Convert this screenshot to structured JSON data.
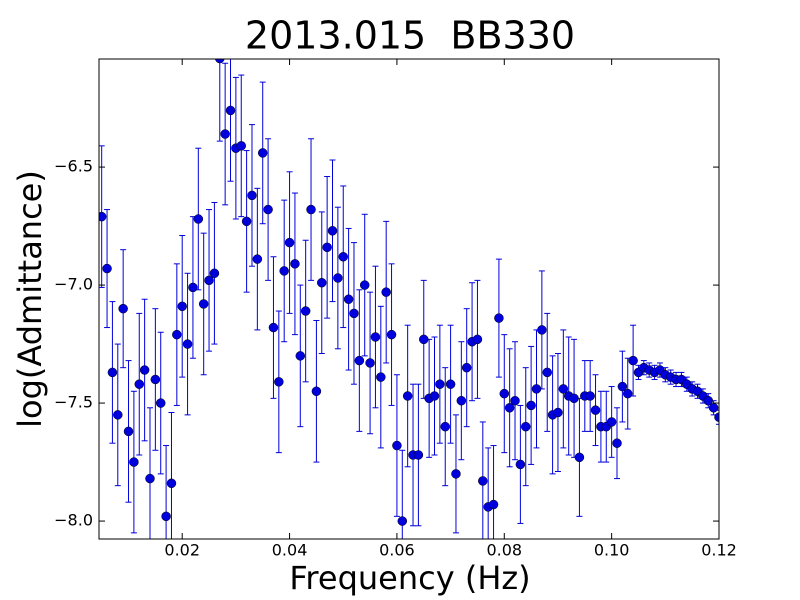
{
  "chart_data": {
    "type": "errorbar",
    "title": "2013.015  BB330",
    "x_label": "Frequency (Hz)",
    "y_label": "log(Admittance)",
    "xlim": [
      0.0045,
      0.12
    ],
    "ylim": [
      -8.076,
      -6.042
    ],
    "xticks": [
      0.02,
      0.04,
      0.06,
      0.08,
      {
        "value": 0.1,
        "label": "0.10"
      },
      0.12
    ],
    "yticks": [
      {
        "value": -8.0,
        "label": "−8.0"
      },
      {
        "value": -7.5,
        "label": "−7.5"
      },
      {
        "value": -7.0,
        "label": "−7.0"
      },
      {
        "value": -6.5,
        "label": "−6.5"
      }
    ],
    "x": [
      0.005,
      0.006,
      0.007,
      0.008,
      0.009,
      0.01,
      0.011,
      0.012,
      0.013,
      0.014,
      0.015,
      0.016,
      0.017,
      0.018,
      0.019,
      0.02,
      0.021,
      0.022,
      0.023,
      0.024,
      0.025,
      0.026,
      0.027,
      0.028,
      0.029,
      0.03,
      0.031,
      0.032,
      0.033,
      0.034,
      0.035,
      0.036,
      0.037,
      0.038,
      0.039,
      0.04,
      0.041,
      0.042,
      0.043,
      0.044,
      0.045,
      0.046,
      0.047,
      0.048,
      0.049,
      0.05,
      0.051,
      0.052,
      0.053,
      0.054,
      0.055,
      0.056,
      0.057,
      0.058,
      0.059,
      0.06,
      0.061,
      0.062,
      0.063,
      0.064,
      0.065,
      0.066,
      0.067,
      0.068,
      0.069,
      0.07,
      0.071,
      0.072,
      0.073,
      0.074,
      0.075,
      0.076,
      0.077,
      0.078,
      0.079,
      0.08,
      0.081,
      0.082,
      0.083,
      0.084,
      0.085,
      0.086,
      0.087,
      0.088,
      0.089,
      0.09,
      0.091,
      0.092,
      0.093,
      0.094,
      0.095,
      0.096,
      0.097,
      0.098,
      0.099,
      0.1,
      0.101,
      0.102,
      0.103,
      0.104,
      0.105,
      0.106,
      0.107,
      0.108,
      0.109,
      0.11,
      0.111,
      0.112,
      0.113,
      0.114,
      0.115,
      0.116,
      0.117,
      0.118,
      0.119,
      0.12
    ],
    "series": [
      {
        "color": "#0000dd",
        "values": [
          -6.71,
          -6.93,
          -7.37,
          -7.55,
          -7.1,
          -7.62,
          -7.75,
          -7.42,
          -7.36,
          -7.82,
          -7.4,
          -7.5,
          -7.98,
          -7.84,
          -7.21,
          -7.09,
          -7.25,
          -7.01,
          -6.72,
          -7.08,
          -6.98,
          -6.95,
          -6.04,
          -6.36,
          -6.26,
          -6.42,
          -6.41,
          -6.73,
          -6.62,
          -6.89,
          -6.44,
          -6.68,
          -7.18,
          -7.41,
          -6.94,
          -6.82,
          -6.91,
          -7.3,
          -7.11,
          -6.68,
          -7.45,
          -6.99,
          -6.84,
          -6.77,
          -6.97,
          -6.88,
          -7.06,
          -7.12,
          -7.32,
          -7.0,
          -7.33,
          -7.22,
          -7.39,
          -7.03,
          -7.21,
          -7.68,
          -8.0,
          -7.47,
          -7.72,
          -7.72,
          -7.23,
          -7.48,
          -7.47,
          -7.42,
          -7.6,
          -7.42,
          -7.8,
          -7.49,
          -7.35,
          -7.24,
          -7.23,
          -7.83,
          -7.94,
          -7.93,
          -7.14,
          -7.46,
          -7.52,
          -7.49,
          -7.76,
          -7.6,
          -7.51,
          -7.44,
          -7.19,
          -7.37,
          -7.55,
          -7.54,
          -7.44,
          -7.47,
          -7.48,
          -7.73,
          -7.47,
          -7.47,
          -7.53,
          -7.6,
          -7.6,
          -7.58,
          -7.67,
          -7.43,
          -7.46,
          -7.32,
          -7.37,
          -7.35,
          -7.36,
          -7.37,
          -7.36,
          -7.38,
          -7.39,
          -7.4,
          -7.4,
          -7.42,
          -7.44,
          -7.45,
          -7.47,
          -7.49,
          -7.52,
          -7.56
        ],
        "errors": [
          0.3,
          0.25,
          0.3,
          0.3,
          0.25,
          0.3,
          0.3,
          0.3,
          0.3,
          0.3,
          0.3,
          0.3,
          0.3,
          0.3,
          0.3,
          0.3,
          0.3,
          0.3,
          0.3,
          0.3,
          0.3,
          0.3,
          0.35,
          0.3,
          0.3,
          0.3,
          0.3,
          0.3,
          0.3,
          0.3,
          0.3,
          0.3,
          0.3,
          0.3,
          0.3,
          0.3,
          0.3,
          0.3,
          0.3,
          0.3,
          0.3,
          0.3,
          0.3,
          0.3,
          0.3,
          0.3,
          0.3,
          0.3,
          0.3,
          0.3,
          0.3,
          0.3,
          0.3,
          0.3,
          0.3,
          0.3,
          0.3,
          0.3,
          0.3,
          0.3,
          0.25,
          0.25,
          0.25,
          0.25,
          0.25,
          0.25,
          0.25,
          0.25,
          0.25,
          0.25,
          0.25,
          0.25,
          0.25,
          0.25,
          0.25,
          0.25,
          0.25,
          0.25,
          0.25,
          0.25,
          0.25,
          0.25,
          0.25,
          0.25,
          0.25,
          0.25,
          0.25,
          0.25,
          0.25,
          0.25,
          0.15,
          0.15,
          0.15,
          0.15,
          0.15,
          0.15,
          0.15,
          0.15,
          0.15,
          0.15,
          0.03,
          0.03,
          0.03,
          0.03,
          0.03,
          0.03,
          0.03,
          0.03,
          0.03,
          0.03,
          0.03,
          0.03,
          0.03,
          0.03,
          0.03,
          0.03
        ]
      }
    ]
  }
}
